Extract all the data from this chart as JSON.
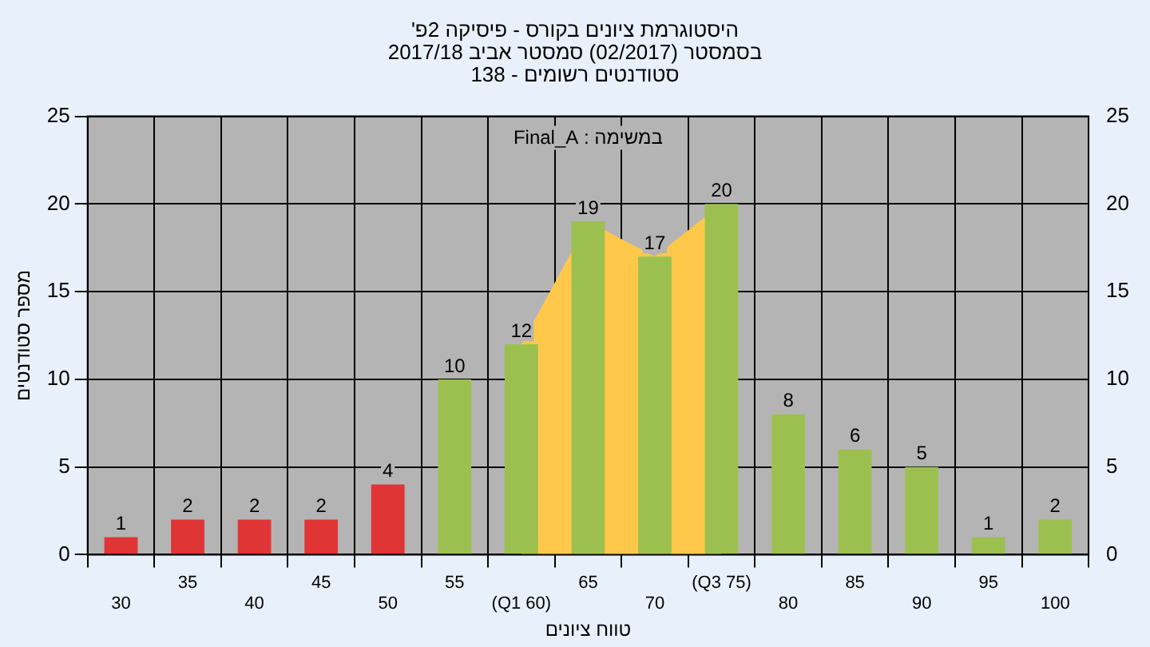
{
  "chart_data": {
    "type": "bar",
    "title": "היסטוגרמת ציונים בקורס - פיסיקה 2פ'",
    "subtitle": "בסמסטר (02/2017) סמסטר אביב 2017/18\nסטודנטים רשומים - 138",
    "xlabel": "טווח ציונים",
    "ylabel": "מספר סטודנטים",
    "annotations": [
      "במשימה : Final_A"
    ],
    "categories": [
      "30",
      "35",
      "40",
      "45",
      "50",
      "55",
      "(Q1 60)",
      "65",
      "70",
      "(Q3 75)",
      "80",
      "85",
      "90",
      "95",
      "100"
    ],
    "series": [
      {
        "type": "area",
        "color": "#ffc84a",
        "values": [
          null,
          null,
          null,
          null,
          null,
          null,
          12,
          19,
          17,
          20,
          null,
          null,
          null,
          null,
          null
        ]
      },
      {
        "colors": [
          "#e03535",
          "#e03535",
          "#e03535",
          "#e03535",
          "#e03535",
          "#9cc04f",
          "#9cc04f",
          "#9cc04f",
          "#9cc04f",
          "#9cc04f",
          "#9cc04f",
          "#9cc04f",
          "#9cc04f",
          "#9cc04f",
          "#9cc04f"
        ],
        "values": [
          1,
          2,
          2,
          2,
          4,
          10,
          12,
          19,
          17,
          20,
          8,
          6,
          5,
          1,
          2
        ],
        "value_labels": [
          "1",
          "2",
          "2",
          "2",
          "4",
          "10",
          "12",
          "19",
          "17",
          "20",
          "8",
          "6",
          "5",
          "1",
          "2"
        ]
      }
    ],
    "ylim": [
      0,
      25
    ],
    "yticks": [
      0,
      5,
      10,
      15,
      20,
      25
    ],
    "y2lim": [
      0,
      25
    ],
    "y2ticks": [
      0,
      5,
      10,
      15,
      20,
      25
    ],
    "grid": true,
    "legend": false
  }
}
